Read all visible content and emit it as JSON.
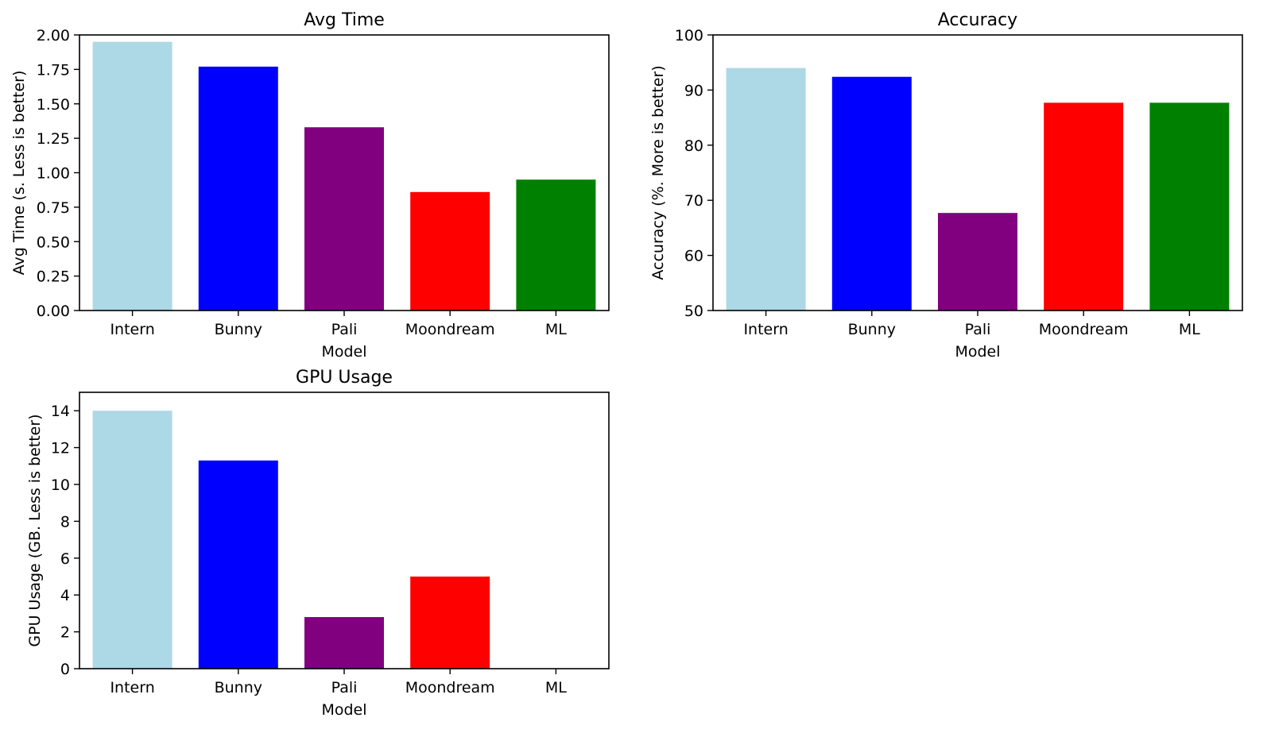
{
  "chart_data": [
    {
      "type": "bar",
      "title": "Avg Time",
      "xlabel": "Model",
      "ylabel": "Avg Time (s. Less is better)",
      "categories": [
        "Intern",
        "Bunny",
        "Pali",
        "Moondream",
        "ML"
      ],
      "values": [
        1.95,
        1.77,
        1.33,
        0.86,
        0.95
      ],
      "colors": [
        "#add8e6",
        "#0000ff",
        "#800080",
        "#ff0000",
        "#008000"
      ],
      "ylim": [
        0,
        2.0
      ],
      "yticks": [
        "0.00",
        "0.25",
        "0.50",
        "0.75",
        "1.00",
        "1.25",
        "1.50",
        "1.75",
        "2.00"
      ],
      "grid": false
    },
    {
      "type": "bar",
      "title": "Accuracy",
      "xlabel": "Model",
      "ylabel": "Accuracy (%. More is better)",
      "categories": [
        "Intern",
        "Bunny",
        "Pali",
        "Moondream",
        "ML"
      ],
      "values": [
        94.0,
        92.4,
        67.7,
        87.7,
        87.7
      ],
      "colors": [
        "#add8e6",
        "#0000ff",
        "#800080",
        "#ff0000",
        "#008000"
      ],
      "ylim": [
        50,
        100
      ],
      "yticks": [
        "50",
        "60",
        "70",
        "80",
        "90",
        "100"
      ],
      "grid": false
    },
    {
      "type": "bar",
      "title": "GPU Usage",
      "xlabel": "Model",
      "ylabel": "GPU Usage (GB. Less is better)",
      "categories": [
        "Intern",
        "Bunny",
        "Pali",
        "Moondream",
        "ML"
      ],
      "values": [
        14.0,
        11.3,
        2.8,
        5.0,
        0
      ],
      "colors": [
        "#add8e6",
        "#0000ff",
        "#800080",
        "#ff0000",
        "#008000"
      ],
      "ylim": [
        0,
        15
      ],
      "yticks": [
        "0",
        "2",
        "4",
        "6",
        "8",
        "10",
        "12",
        "14"
      ],
      "grid": false
    }
  ]
}
